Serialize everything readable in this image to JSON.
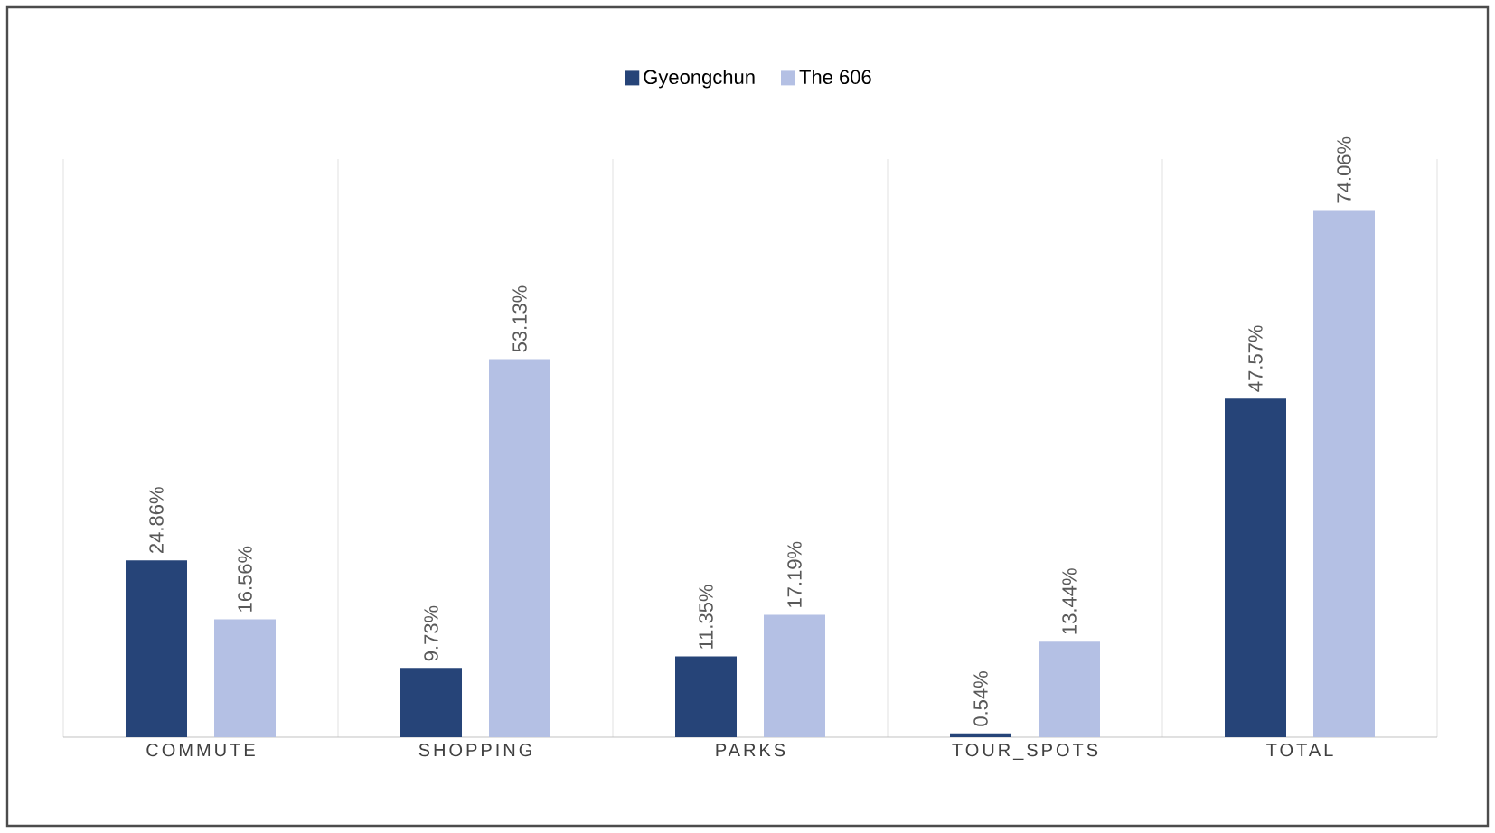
{
  "chart_data": {
    "type": "bar",
    "categories": [
      "COMMUTE",
      "SHOPPING",
      "PARKS",
      "TOUR_SPOTS",
      "TOTAL"
    ],
    "series": [
      {
        "name": "Gyeongchun",
        "color": "#264478",
        "values": [
          24.86,
          9.73,
          11.35,
          0.54,
          47.57
        ],
        "value_labels": [
          "24.86%",
          "9.73%",
          "11.35%",
          "0.54%",
          "47.57%"
        ]
      },
      {
        "name": "The 606",
        "color": "#b4c0e4",
        "values": [
          16.56,
          53.13,
          17.19,
          13.44,
          74.06
        ],
        "value_labels": [
          "16.56%",
          "53.13%",
          "17.19%",
          "13.44%",
          "74.06%"
        ]
      }
    ],
    "legend": "top",
    "grid": "x"
  }
}
